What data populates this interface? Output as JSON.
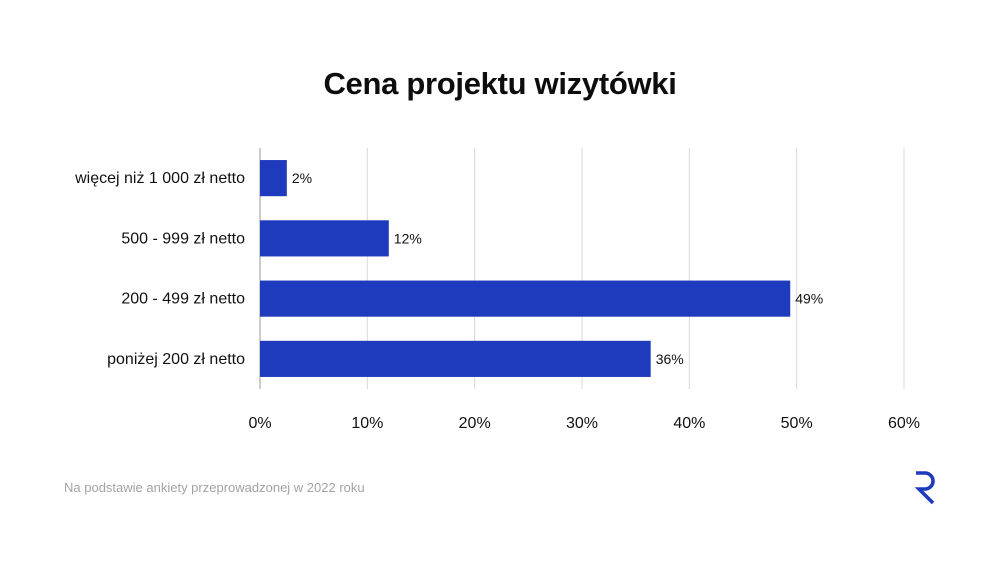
{
  "chart_data": {
    "type": "bar",
    "orientation": "horizontal",
    "title": "Cena projektu wizytówki",
    "categories": [
      "więcej niż 1 000 zł netto",
      "500 - 999 zł netto",
      "200 - 499 zł netto",
      "poniżej 200 zł netto"
    ],
    "values": [
      2.5,
      12,
      49.4,
      36.4
    ],
    "value_labels": [
      "2%",
      "12%",
      "49%",
      "36%"
    ],
    "xlim": [
      0,
      60
    ],
    "xticks": [
      0,
      10,
      20,
      30,
      40,
      50,
      60
    ],
    "xtick_labels": [
      "0%",
      "10%",
      "20%",
      "30%",
      "40%",
      "50%",
      "60%"
    ],
    "grid": "vertical",
    "bar_color": "#1f3bbd"
  },
  "footnote": "Na podstawie ankiety przeprowadzonej w 2022 roku",
  "logo": {
    "icon": "r-logo-icon",
    "color": "#1f3bbd"
  }
}
